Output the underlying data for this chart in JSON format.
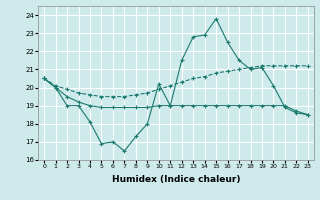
{
  "xlabel": "Humidex (Indice chaleur)",
  "xlim": [
    -0.5,
    23.5
  ],
  "ylim": [
    16,
    24.5
  ],
  "yticks": [
    16,
    17,
    18,
    19,
    20,
    21,
    22,
    23,
    24
  ],
  "xticks": [
    0,
    1,
    2,
    3,
    4,
    5,
    6,
    7,
    8,
    9,
    10,
    11,
    12,
    13,
    14,
    15,
    16,
    17,
    18,
    19,
    20,
    21,
    22,
    23
  ],
  "bg_color": "#ceeaea",
  "grid_color": "#ffffff",
  "line_color": "#1a7a6e",
  "line1": [
    20.5,
    20.0,
    19.0,
    19.0,
    18.1,
    16.9,
    17.0,
    16.5,
    17.3,
    18.0,
    20.2,
    19.0,
    21.5,
    22.8,
    22.9,
    23.8,
    22.5,
    21.5,
    21.0,
    21.1,
    20.1,
    18.9,
    18.6,
    18.5
  ],
  "line2": [
    20.5,
    20.1,
    19.9,
    19.7,
    19.6,
    19.5,
    19.5,
    19.5,
    19.6,
    19.7,
    19.9,
    20.1,
    20.3,
    20.5,
    20.6,
    20.8,
    20.9,
    21.0,
    21.1,
    21.2,
    21.2,
    21.2,
    21.2,
    21.2
  ],
  "line3": [
    20.5,
    20.0,
    19.5,
    19.2,
    19.0,
    18.9,
    18.9,
    18.9,
    18.9,
    18.9,
    19.0,
    19.0,
    19.0,
    19.0,
    19.0,
    19.0,
    19.0,
    19.0,
    19.0,
    19.0,
    19.0,
    19.0,
    18.7,
    18.5
  ]
}
